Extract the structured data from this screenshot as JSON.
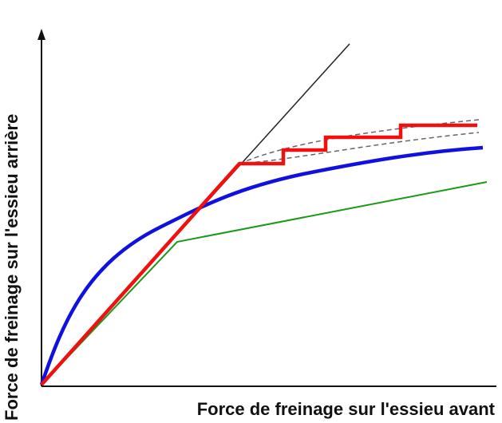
{
  "x_axis_label": "Force de freinage sur l'essieu avant",
  "y_axis_label": "Force de freinage sur l'essieu arrière"
}
